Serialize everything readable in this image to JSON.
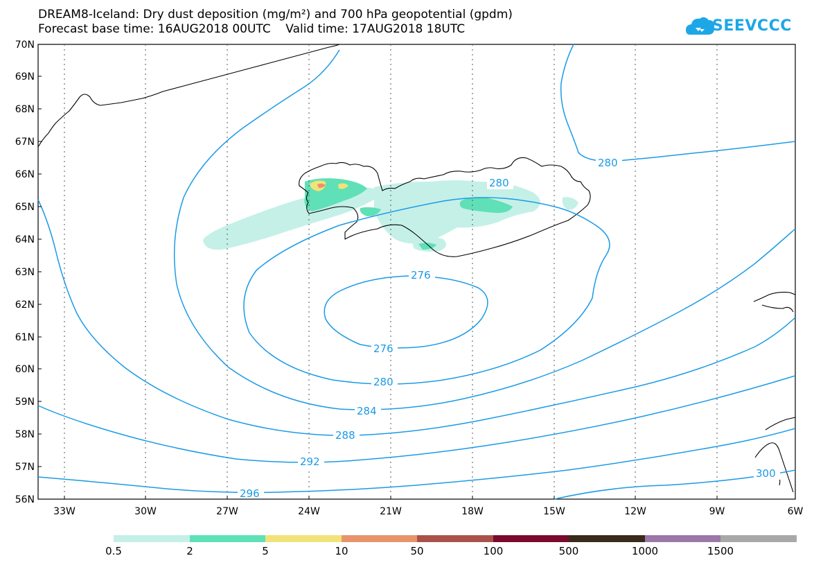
{
  "title_line1": "DREAM8-Iceland: Dry dust deposition (mg/m²) and 700 hPa geopotential (gpdm)",
  "title_line2": "Forecast base time: 16AUG2018 00UTC    Valid time: 17AUG2018 18UTC",
  "logo_text": "SEEVCCC",
  "colors": {
    "contour": "#1a9ae6",
    "coast": "#000000",
    "dust_low": "#c4f0e8",
    "dust_mid": "#5fe0b6",
    "dust_high": "#f2e27a",
    "dust_higher": "#e8946a",
    "logo": "#1da7e6"
  },
  "lat_labels": [
    "70N",
    "69N",
    "68N",
    "67N",
    "66N",
    "65N",
    "64N",
    "63N",
    "62N",
    "61N",
    "60N",
    "59N",
    "58N",
    "57N",
    "56N"
  ],
  "lon_labels": [
    "33W",
    "30W",
    "27W",
    "24W",
    "21W",
    "18W",
    "15W",
    "12W",
    "9W",
    "6W"
  ],
  "contour_labels": [
    "280",
    "280",
    "276",
    "276",
    "280",
    "284",
    "288",
    "292",
    "296",
    "300"
  ],
  "colorbar": {
    "labels": [
      "0.5",
      "2",
      "5",
      "10",
      "50",
      "100",
      "500",
      "1000",
      "1500"
    ],
    "colors": [
      "#c4f0e8",
      "#5fe0b6",
      "#f2e27a",
      "#e8946a",
      "#a8524a",
      "#7a0a2e",
      "#3a2a1a",
      "#9a78a8",
      "#a8a8a8"
    ]
  }
}
